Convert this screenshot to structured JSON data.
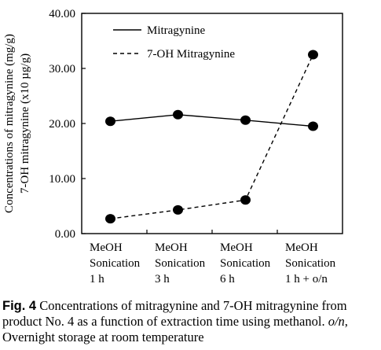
{
  "chart_data": {
    "type": "line",
    "categories": [
      [
        "MeOH",
        "Sonication",
        "1 h"
      ],
      [
        "MeOH",
        "Sonication",
        "3 h"
      ],
      [
        "MeOH",
        "Sonication",
        "6 h"
      ],
      [
        "MeOH",
        "Sonication",
        "1 h  + o/n"
      ]
    ],
    "series": [
      {
        "name": "Mitragynine",
        "values": [
          20.4,
          21.6,
          20.6,
          19.5
        ],
        "line_style": "solid"
      },
      {
        "name": "7-OH Mitragynine",
        "values": [
          2.7,
          4.3,
          6.1,
          32.5
        ],
        "line_style": "dashed"
      }
    ],
    "ylabel_lines": [
      "Concentrations of mitragynine (mg/g)",
      "7-OH mitragynine (x10 µg/g)"
    ],
    "ylim": [
      0,
      40
    ],
    "yticks": [
      "0.00",
      "10.00",
      "20.00",
      "30.00",
      "40.00"
    ],
    "legend_placement": "top-right",
    "grid": false
  },
  "caption": {
    "fig_label": "Fig. 4",
    "text_before": "  Concentrations of mitragynine and 7-OH mitragynine from product No. 4 as a function of extraction time using methanol. ",
    "abbrev": "o/n",
    "text_after": ", Overnight storage at room temperature"
  }
}
